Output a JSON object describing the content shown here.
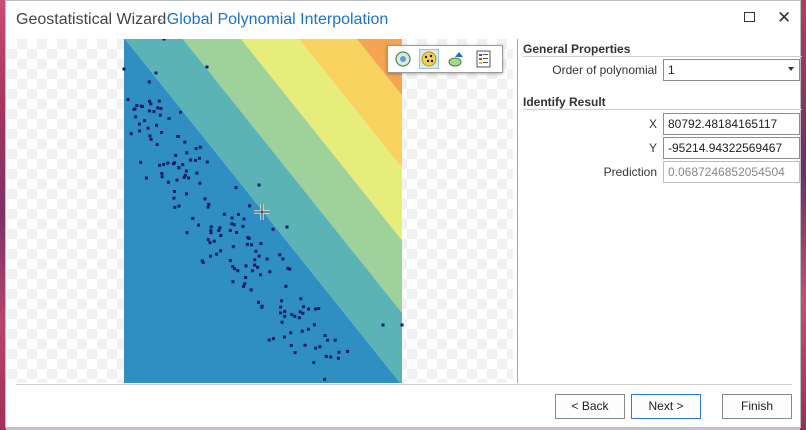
{
  "window": {
    "title": "Geostatistical Wizard",
    "subtitle": "- Global Polynomial Interpolation"
  },
  "map": {
    "toolbar_icons": [
      "globe-icon",
      "layer-points-icon",
      "layer-surface-icon",
      "legend-icon"
    ],
    "active_tool": "layer-points-icon",
    "surface_colors": [
      "#2f8fc3",
      "#5bb3b6",
      "#9fd29a",
      "#e7ed7b",
      "#f8d35f",
      "#f5a552",
      "#ec7040",
      "#e23527"
    ],
    "point_color": "#0b1a6e"
  },
  "general_properties": {
    "title": "General Properties",
    "order_label": "Order of polynomial",
    "order_value": "1"
  },
  "identify_result": {
    "title": "Identify Result",
    "x_label": "X",
    "x_value": "80792.48184165117",
    "y_label": "Y",
    "y_value": "-95214.94322569467",
    "prediction_label": "Prediction",
    "prediction_value": "0.0687246852054504"
  },
  "buttons": {
    "back": "< Back",
    "next": "Next >",
    "finish": "Finish"
  }
}
